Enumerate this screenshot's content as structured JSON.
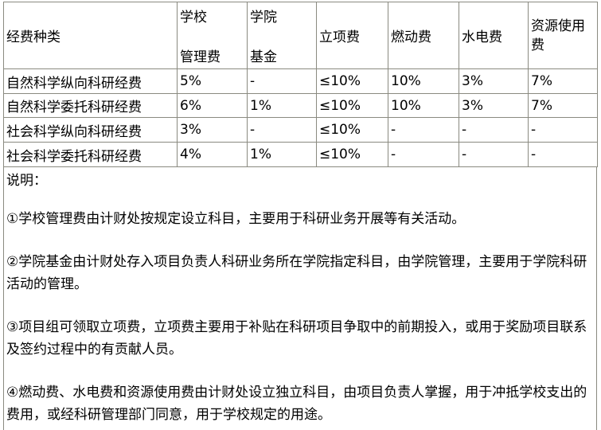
{
  "headers": [
    "经费种类",
    "学校",
    "管理费",
    "学院",
    "基金",
    "立项费",
    "燃动费",
    "水电费",
    "资源使用费"
  ],
  "rows": [
    [
      "自然科学纵向科研经费",
      "5%",
      "-",
      "≤10%",
      "10%",
      "3%",
      "7%"
    ],
    [
      "自然科学委托科研经费",
      "6%",
      "1%",
      "≤10%",
      "10%",
      "3%",
      "7%"
    ],
    [
      "社会科学纵向科研经费",
      "3%",
      "-",
      "≤10%",
      "-",
      "-",
      "-"
    ],
    [
      "社会科学委托科研经费",
      "4%",
      "1%",
      "≤10%",
      "-",
      "-",
      "-"
    ]
  ],
  "notes": {
    "title": "说明：",
    "items": [
      "①学校管理费由计财处按规定设立科目，主要用于科研业务开展等有关活动。",
      "②学院基金由计财处存入项目负责人科研业务所在学院指定科目，由学院管理，主要用于学院科研活动的管理。",
      "③项目组可领取立项费，立项费主要用于补贴在科研项目争取中的前期投入，或用于奖励项目联系及签约过程中的有贡献人员。",
      "④燃动费、水电费和资源使用费由计财处设立独立科目，由项目负责人掌握，用于冲抵学校支出的费用，或经科研管理部门同意，用于学校规定的用途。"
    ]
  }
}
